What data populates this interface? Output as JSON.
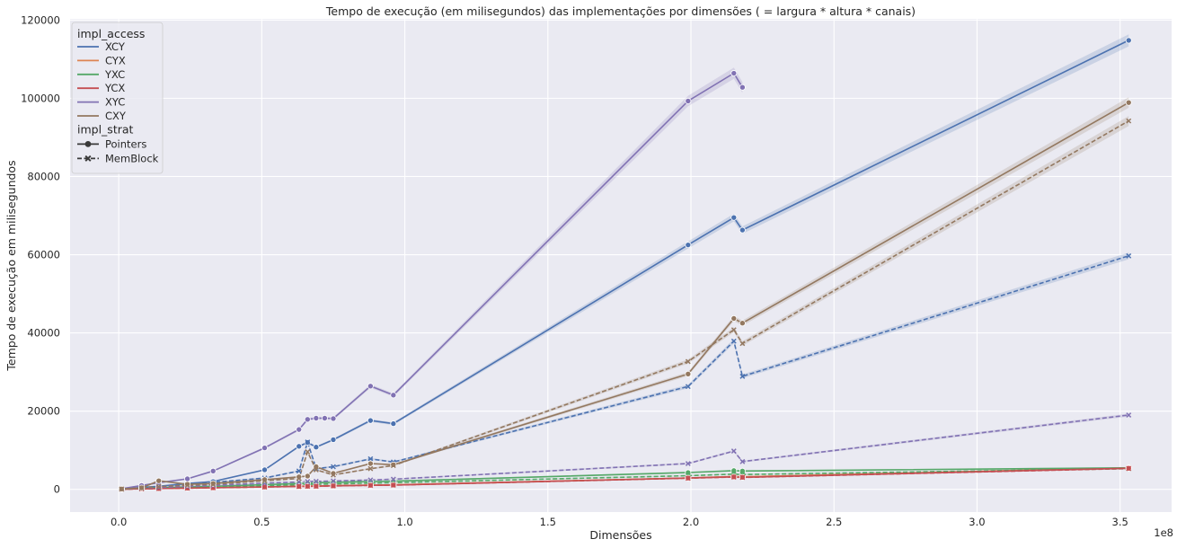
{
  "chart_data": {
    "type": "line",
    "title": "Tempo de execução (em milisegundos) das implementações por dimensões ( = largura * altura * canais)",
    "xlabel": "Dimensões",
    "ylabel": "Tempo de execução em milisegundos",
    "x_offset_label": "1e8",
    "xlim": [
      -0.17,
      3.68
    ],
    "ylim": [
      -5800,
      120300
    ],
    "x_ticks": [
      0.0,
      0.5,
      1.0,
      1.5,
      2.0,
      2.5,
      3.0,
      3.5
    ],
    "x_tick_labels": [
      "0.0",
      "0.5",
      "1.0",
      "1.5",
      "2.0",
      "2.5",
      "3.0",
      "3.5"
    ],
    "y_ticks": [
      0,
      20000,
      40000,
      60000,
      80000,
      100000,
      120000
    ],
    "y_tick_labels": [
      "0",
      "20000",
      "40000",
      "60000",
      "80000",
      "100000",
      "120000"
    ],
    "grid": true,
    "legend_placement": "top-left",
    "legend": {
      "hue_title": "impl_access",
      "style_title": "impl_strat",
      "style_entries": [
        {
          "label": "Pointers",
          "dash": "solid",
          "marker": "circle"
        },
        {
          "label": "MemBlock",
          "dash": "dashed",
          "marker": "x"
        }
      ]
    },
    "series": [
      {
        "name": "XCY",
        "color": "#4c72b0",
        "strat": "Pointers",
        "x": [
          0.01,
          0.08,
          0.14,
          0.24,
          0.33,
          0.51,
          0.63,
          0.66,
          0.69,
          0.75,
          0.88,
          0.96,
          1.99,
          2.15,
          2.18,
          3.53
        ],
        "y": [
          100,
          500,
          800,
          1500,
          2000,
          5000,
          11000,
          12000,
          10800,
          12700,
          17600,
          16800,
          62500,
          69500,
          66300,
          114800
        ]
      },
      {
        "name": "XCY",
        "color": "#4c72b0",
        "strat": "MemBlock",
        "x": [
          0.01,
          0.08,
          0.14,
          0.24,
          0.33,
          0.51,
          0.63,
          0.66,
          0.69,
          0.75,
          0.88,
          0.96,
          1.99,
          2.15,
          2.18,
          3.53
        ],
        "y": [
          100,
          400,
          700,
          1300,
          1800,
          2900,
          4700,
          12100,
          5300,
          5800,
          7800,
          7000,
          26300,
          37900,
          28900,
          59700
        ]
      },
      {
        "name": "CYX",
        "color": "#dd8452",
        "strat": "Pointers",
        "x": [
          0.01,
          0.08,
          0.14,
          0.24,
          0.33,
          0.51,
          0.63,
          0.66,
          0.69,
          0.75,
          0.88,
          0.96,
          1.99,
          2.15,
          2.18,
          3.53
        ],
        "y": [
          50,
          150,
          250,
          350,
          450,
          650,
          800,
          850,
          870,
          950,
          1100,
          1150,
          2900,
          3300,
          3200,
          5500
        ]
      },
      {
        "name": "CYX",
        "color": "#dd8452",
        "strat": "MemBlock",
        "x": [
          0.01,
          0.08,
          0.14,
          0.24,
          0.33,
          0.51,
          0.63,
          0.66,
          0.69,
          0.75,
          0.88,
          0.96,
          1.99,
          2.15,
          2.18,
          3.53
        ],
        "y": [
          50,
          150,
          250,
          350,
          450,
          650,
          800,
          850,
          870,
          950,
          1100,
          1150,
          2900,
          3300,
          3200,
          5500
        ]
      },
      {
        "name": "YXC",
        "color": "#55a868",
        "strat": "Pointers",
        "x": [
          0.01,
          0.08,
          0.14,
          0.24,
          0.33,
          0.51,
          0.63,
          0.66,
          0.69,
          0.75,
          0.88,
          0.96,
          1.99,
          2.15,
          2.18,
          3.53
        ],
        "y": [
          80,
          250,
          400,
          600,
          800,
          1200,
          1500,
          1600,
          1700,
          1800,
          2000,
          2100,
          4300,
          4800,
          4700,
          5500
        ]
      },
      {
        "name": "YXC",
        "color": "#55a868",
        "strat": "MemBlock",
        "x": [
          0.01,
          0.08,
          0.14,
          0.24,
          0.33,
          0.51,
          0.63,
          0.66,
          0.69,
          0.75,
          0.88,
          0.96,
          1.99,
          2.15,
          2.18,
          3.53
        ],
        "y": [
          60,
          200,
          350,
          500,
          650,
          950,
          1200,
          1300,
          1300,
          1400,
          1600,
          1700,
          3500,
          3900,
          3800,
          5300
        ]
      },
      {
        "name": "YCX",
        "color": "#c44e52",
        "strat": "Pointers",
        "x": [
          0.01,
          0.08,
          0.14,
          0.24,
          0.33,
          0.51,
          0.63,
          0.66,
          0.69,
          0.75,
          0.88,
          0.96,
          1.99,
          2.15,
          2.18,
          3.53
        ],
        "y": [
          40,
          140,
          220,
          330,
          420,
          620,
          760,
          800,
          820,
          900,
          1050,
          1100,
          2900,
          3200,
          3100,
          5400
        ]
      },
      {
        "name": "YCX",
        "color": "#c44e52",
        "strat": "MemBlock",
        "x": [
          0.01,
          0.08,
          0.14,
          0.24,
          0.33,
          0.51,
          0.63,
          0.66,
          0.69,
          0.75,
          0.88,
          0.96,
          1.99,
          2.15,
          2.18,
          3.53
        ],
        "y": [
          40,
          130,
          210,
          320,
          410,
          600,
          740,
          780,
          800,
          880,
          1030,
          1080,
          2850,
          3150,
          3050,
          5350
        ]
      },
      {
        "name": "XYC",
        "color": "#8172b3",
        "strat": "Pointers",
        "x": [
          0.01,
          0.08,
          0.14,
          0.24,
          0.33,
          0.51,
          0.63,
          0.66,
          0.69,
          0.72,
          0.75,
          0.88,
          0.96,
          1.99,
          2.15,
          2.18
        ],
        "y": [
          150,
          1000,
          1700,
          2700,
          4700,
          10600,
          15300,
          17900,
          18200,
          18200,
          18100,
          26400,
          24100,
          99300,
          106400,
          102800
        ]
      },
      {
        "name": "XYC",
        "color": "#8172b3",
        "strat": "MemBlock",
        "x": [
          0.01,
          0.08,
          0.14,
          0.24,
          0.33,
          0.51,
          0.63,
          0.66,
          0.69,
          0.75,
          0.88,
          0.96,
          1.99,
          2.15,
          2.18,
          3.53
        ],
        "y": [
          80,
          300,
          500,
          800,
          1000,
          1600,
          1900,
          2000,
          2050,
          2150,
          2400,
          2600,
          6600,
          9800,
          7100,
          19000
        ]
      },
      {
        "name": "CXY",
        "color": "#937860",
        "strat": "Pointers",
        "x": [
          0.01,
          0.08,
          0.14,
          0.24,
          0.33,
          0.51,
          0.63,
          0.66,
          0.69,
          0.75,
          0.88,
          0.96,
          1.99,
          2.15,
          2.18,
          3.53
        ],
        "y": [
          100,
          400,
          2200,
          1300,
          1500,
          2500,
          3200,
          3400,
          5800,
          4100,
          6600,
          6300,
          29500,
          43700,
          42500,
          98900
        ]
      },
      {
        "name": "CXY",
        "color": "#937860",
        "strat": "MemBlock",
        "x": [
          0.01,
          0.08,
          0.14,
          0.24,
          0.33,
          0.51,
          0.63,
          0.66,
          0.69,
          0.75,
          0.88,
          0.96,
          1.99,
          2.15,
          2.18,
          3.53
        ],
        "y": [
          100,
          350,
          700,
          1100,
          1300,
          2200,
          2800,
          9600,
          5000,
          3700,
          5300,
          6100,
          32700,
          40800,
          37300,
          94200
        ]
      }
    ]
  }
}
